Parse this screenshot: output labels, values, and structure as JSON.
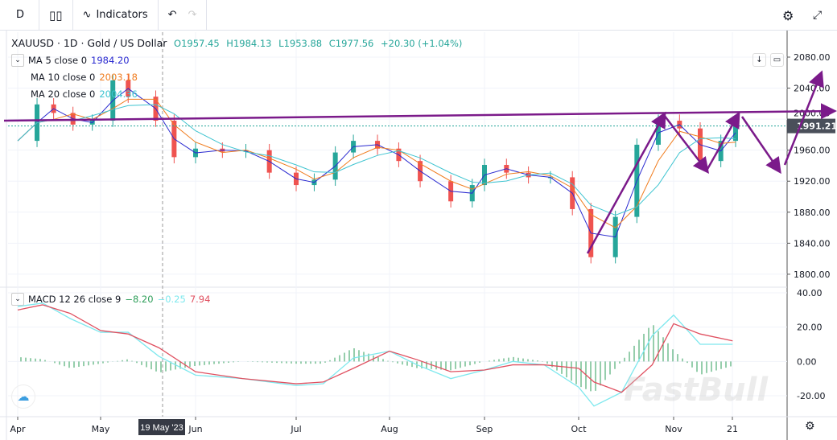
{
  "toolbar": {
    "interval": "D",
    "indicators": "Indicators",
    "undo_icon": "undo-icon",
    "redo_icon": "redo-icon",
    "settings_icon": "gear-icon",
    "fullscreen_icon": "fullscreen-icon"
  },
  "legend": {
    "symbol": "XAUUSD · 1D · Gold / US Dollar",
    "open": "O1957.45",
    "high": "H1984.13",
    "low": "L1953.88",
    "close": "C1977.56",
    "change": "+20.30 (+1.04%)",
    "ma5": {
      "label": "MA 5 close 0",
      "value": "1984.20",
      "color": "#2a2ad0"
    },
    "ma10": {
      "label": "MA 10 close 0",
      "value": "2003.18",
      "color": "#f07c1e"
    },
    "ma20": {
      "label": "MA 20 close 0",
      "value": "2004.36",
      "color": "#3ec4d0"
    },
    "macd": {
      "label": "MACD 12 26 close 9",
      "hist": "−8.20",
      "macd": "−0.25",
      "signal": "7.94"
    }
  },
  "crosshair_date": "19 May '23",
  "last_price": "1991.21",
  "watermark": "FastBull",
  "colors": {
    "up": "#26a69a",
    "down": "#ef5350",
    "annotation": "#7b1a8a",
    "macd": "#7ee8ee",
    "signal": "#e05060",
    "hist": "#2e9e5a"
  },
  "chart_data": [
    {
      "type": "candlestick",
      "title": "XAUUSD · 1D · Gold / US Dollar",
      "y_ticks": [
        2080,
        2040,
        2000,
        1960,
        1920,
        1880,
        1840,
        1800
      ],
      "ylim": [
        1790,
        2100
      ],
      "x_ticks": [
        "Apr",
        "May",
        "Jun",
        "Jul",
        "Aug",
        "Sep",
        "Oct",
        "Nov",
        "21"
      ],
      "dates": [
        "2023-04-01",
        "2023-04-08",
        "2023-04-14",
        "2023-04-21",
        "2023-04-28",
        "2023-05-05",
        "2023-05-10",
        "2023-05-19",
        "2023-05-25",
        "2023-06-01",
        "2023-06-09",
        "2023-06-16",
        "2023-06-23",
        "2023-07-01",
        "2023-07-07",
        "2023-07-14",
        "2023-07-20",
        "2023-07-28",
        "2023-08-04",
        "2023-08-11",
        "2023-08-21",
        "2023-08-28",
        "2023-09-01",
        "2023-09-08",
        "2023-09-15",
        "2023-09-22",
        "2023-09-29",
        "2023-10-05",
        "2023-10-13",
        "2023-10-20",
        "2023-10-27",
        "2023-11-03",
        "2023-11-10",
        "2023-11-17",
        "2023-11-22"
      ],
      "close": [
        1972,
        2019,
        2008,
        1993,
        1998,
        2050,
        2029,
        1998,
        1951,
        1962,
        1958,
        1960,
        1931,
        1915,
        1922,
        1957,
        1972,
        1962,
        1946,
        1920,
        1894,
        1915,
        1941,
        1931,
        1925,
        1925,
        1884,
        1822,
        1874,
        1967,
        1998,
        1988,
        1946,
        1972,
        1993
      ],
      "ma_series": [
        "MA 5",
        "MA 10",
        "MA 20"
      ]
    },
    {
      "type": "line",
      "title": "MACD 12 26 close 9",
      "y_ticks": [
        40,
        20,
        0,
        -20
      ],
      "ylim": [
        -30,
        45
      ],
      "dates": [
        "2023-04-01",
        "2023-04-10",
        "2023-04-20",
        "2023-05-01",
        "2023-05-10",
        "2023-05-20",
        "2023-06-01",
        "2023-06-15",
        "2023-07-01",
        "2023-07-10",
        "2023-07-20",
        "2023-08-01",
        "2023-08-10",
        "2023-08-21",
        "2023-09-01",
        "2023-09-10",
        "2023-09-20",
        "2023-10-01",
        "2023-10-06",
        "2023-10-15",
        "2023-10-25",
        "2023-11-01",
        "2023-11-10",
        "2023-11-21"
      ],
      "macd": [
        32,
        34,
        25,
        17,
        17,
        3,
        -8,
        -10,
        -14,
        -13,
        2,
        6,
        -2,
        -10,
        -5,
        0,
        -2,
        -15,
        -26,
        -18,
        15,
        27,
        10,
        10
      ],
      "signal": [
        30,
        33,
        28,
        18,
        16,
        8,
        -6,
        -10,
        -13,
        -12,
        -4,
        6,
        1,
        -6,
        -5,
        -2,
        -2,
        -4,
        -12,
        -18,
        -2,
        22,
        16,
        12
      ]
    }
  ]
}
